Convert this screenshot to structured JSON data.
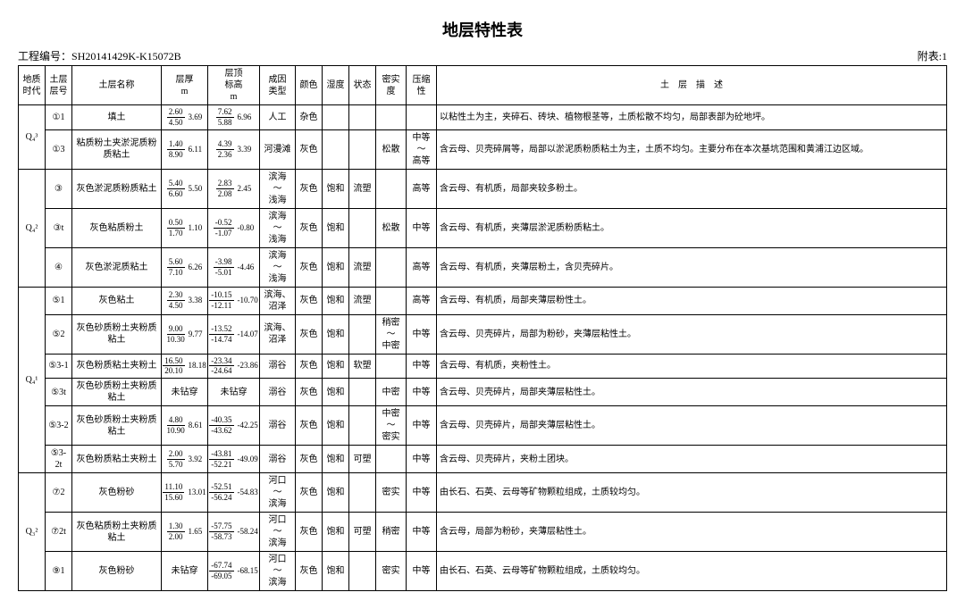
{
  "title": "地层特性表",
  "project_label": "工程编号：",
  "project_no": "SH20141429K-K15072B",
  "appendix": "附表:1",
  "headers": {
    "era": "地质\n时代",
    "layer": "土层\n层号",
    "name": "土层名称",
    "thick": "层厚\nm",
    "top": "层顶\n标高\nm",
    "origin": "成因\n类型",
    "color": "颜色",
    "humid": "湿度",
    "state": "状态",
    "density": "密实度",
    "compress": "压缩性",
    "desc": "土　层　描　述"
  },
  "eras": [
    {
      "label": "Q₄³",
      "rowspan": 2
    },
    {
      "label": "Q₄²",
      "rowspan": 3
    },
    {
      "label": "Q₄¹",
      "rowspan": 6
    },
    {
      "label": "Q₃²",
      "rowspan": 3
    }
  ],
  "rows": [
    {
      "layer": "①1",
      "name": "填土",
      "thick": {
        "a": "2.60",
        "b": "4.50",
        "avg": "3.69"
      },
      "top": {
        "a": "7.62",
        "b": "5.88",
        "avg": "6.96"
      },
      "origin": "人工",
      "color": "杂色",
      "humid": "",
      "state": "",
      "density": "",
      "compress": "",
      "desc": "以粘性土为主，夹碎石、砖块、植物根茎等，土质松散不均匀，局部表部为砼地坪。"
    },
    {
      "layer": "①3",
      "name": "粘质粉土夹淤泥质粉质粘土",
      "thick": {
        "a": "1.40",
        "b": "8.90",
        "avg": "6.11"
      },
      "top": {
        "a": "4.39",
        "b": "2.36",
        "avg": "3.39"
      },
      "origin": "河漫滩",
      "color": "灰色",
      "humid": "",
      "state": "",
      "density": "松散",
      "compress": "中等\n～\n高等",
      "desc": "含云母、贝壳碎屑等，局部以淤泥质粉质粘土为主，土质不均匀。主要分布在本次基坑范围和黄浦江边区域。"
    },
    {
      "layer": "③",
      "name": "灰色淤泥质粉质粘土",
      "thick": {
        "a": "5.40",
        "b": "6.60",
        "avg": "5.50"
      },
      "top": {
        "a": "2.83",
        "b": "2.08",
        "avg": "2.45"
      },
      "origin": "滨海\n～\n浅海",
      "color": "灰色",
      "humid": "饱和",
      "state": "流塑",
      "density": "",
      "compress": "高等",
      "desc": "含云母、有机质，局部夹较多粉土。"
    },
    {
      "layer": "③t",
      "name": "灰色粘质粉土",
      "thick": {
        "a": "0.50",
        "b": "1.70",
        "avg": "1.10"
      },
      "top": {
        "a": "-0.52",
        "b": "-1.07",
        "avg": "-0.80"
      },
      "origin": "滨海\n～\n浅海",
      "color": "灰色",
      "humid": "饱和",
      "state": "",
      "density": "松散",
      "compress": "中等",
      "desc": "含云母、有机质，夹薄层淤泥质粉质粘土。"
    },
    {
      "layer": "④",
      "name": "灰色淤泥质粘土",
      "thick": {
        "a": "5.60",
        "b": "7.10",
        "avg": "6.26"
      },
      "top": {
        "a": "-3.98",
        "b": "-5.01",
        "avg": "-4.46"
      },
      "origin": "滨海\n～\n浅海",
      "color": "灰色",
      "humid": "饱和",
      "state": "流塑",
      "density": "",
      "compress": "高等",
      "desc": "含云母、有机质，夹薄层粉土，含贝壳碎片。"
    },
    {
      "layer": "⑤1",
      "name": "灰色粘土",
      "thick": {
        "a": "2.30",
        "b": "4.50",
        "avg": "3.38"
      },
      "top": {
        "a": "-10.15",
        "b": "-12.11",
        "avg": "-10.70"
      },
      "origin": "滨海、沼泽",
      "color": "灰色",
      "humid": "饱和",
      "state": "流塑",
      "density": "",
      "compress": "高等",
      "desc": "含云母、有机质，局部夹薄层粉性土。"
    },
    {
      "layer": "⑤2",
      "name": "灰色砂质粉土夹粉质粘土",
      "thick": {
        "a": "9.00",
        "b": "10.30",
        "avg": "9.77"
      },
      "top": {
        "a": "-13.52",
        "b": "-14.74",
        "avg": "-14.07"
      },
      "origin": "滨海、沼泽",
      "color": "灰色",
      "humid": "饱和",
      "state": "",
      "density": "稍密\n～\n中密",
      "compress": "中等",
      "desc": "含云母、贝壳碎片，局部为粉砂，夹薄层粘性土。"
    },
    {
      "layer": "⑤3-1",
      "name": "灰色粉质粘土夹粉土",
      "thick": {
        "a": "16.50",
        "b": "20.10",
        "avg": "18.18"
      },
      "top": {
        "a": "-23.34",
        "b": "-24.64",
        "avg": "-23.86"
      },
      "origin": "溺谷",
      "color": "灰色",
      "humid": "饱和",
      "state": "软塑",
      "density": "",
      "compress": "中等",
      "desc": "含云母、有机质，夹粉性土。"
    },
    {
      "layer": "⑤3t",
      "name": "灰色砂质粉土夹粉质粘土",
      "thick": {
        "plain": "未钻穿"
      },
      "top": {
        "plain": "未钻穿"
      },
      "origin": "溺谷",
      "color": "灰色",
      "humid": "饱和",
      "state": "",
      "density": "中密",
      "compress": "中等",
      "desc": "含云母、贝壳碎片，局部夹薄层粘性土。"
    },
    {
      "layer": "⑤3-2",
      "name": "灰色砂质粉土夹粉质粘土",
      "thick": {
        "a": "4.80",
        "b": "10.90",
        "avg": "8.61"
      },
      "top": {
        "a": "-40.35",
        "b": "-43.62",
        "avg": "-42.25"
      },
      "origin": "溺谷",
      "color": "灰色",
      "humid": "饱和",
      "state": "",
      "density": "中密\n～\n密实",
      "compress": "中等",
      "desc": "含云母、贝壳碎片，局部夹薄层粘性土。"
    },
    {
      "layer": "⑤3-2t",
      "name": "灰色粉质粘土夹粉土",
      "thick": {
        "a": "2.00",
        "b": "5.70",
        "avg": "3.92"
      },
      "top": {
        "a": "-43.81",
        "b": "-52.21",
        "avg": "-49.09"
      },
      "origin": "溺谷",
      "color": "灰色",
      "humid": "饱和",
      "state": "可塑",
      "density": "",
      "compress": "中等",
      "desc": "含云母、贝壳碎片，夹粉土团块。"
    },
    {
      "layer": "⑦2",
      "name": "灰色粉砂",
      "thick": {
        "a": "11.10",
        "b": "15.60",
        "avg": "13.01"
      },
      "top": {
        "a": "-52.51",
        "b": "-56.24",
        "avg": "-54.83"
      },
      "origin": "河口\n～\n滨海",
      "color": "灰色",
      "humid": "饱和",
      "state": "",
      "density": "密实",
      "compress": "中等",
      "desc": "由长石、石英、云母等矿物颗粒组成，土质较均匀。"
    },
    {
      "layer": "⑦2t",
      "name": "灰色粘质粉土夹粉质粘土",
      "thick": {
        "a": "1.30",
        "b": "2.00",
        "avg": "1.65"
      },
      "top": {
        "a": "-57.75",
        "b": "-58.73",
        "avg": "-58.24"
      },
      "origin": "河口\n～\n滨海",
      "color": "灰色",
      "humid": "饱和",
      "state": "可塑",
      "density": "稍密",
      "compress": "中等",
      "desc": "含云母，局部为粉砂，夹薄层粘性土。"
    },
    {
      "layer": "⑨1",
      "name": "灰色粉砂",
      "thick": {
        "plain": "未钻穿"
      },
      "top": {
        "a": "-67.74",
        "b": "-69.05",
        "avg": "-68.15"
      },
      "origin": "河口\n～\n滨海",
      "color": "灰色",
      "humid": "饱和",
      "state": "",
      "density": "密实",
      "compress": "中等",
      "desc": "由长石、石英、云母等矿物颗粒组成，土质较均匀。"
    }
  ]
}
